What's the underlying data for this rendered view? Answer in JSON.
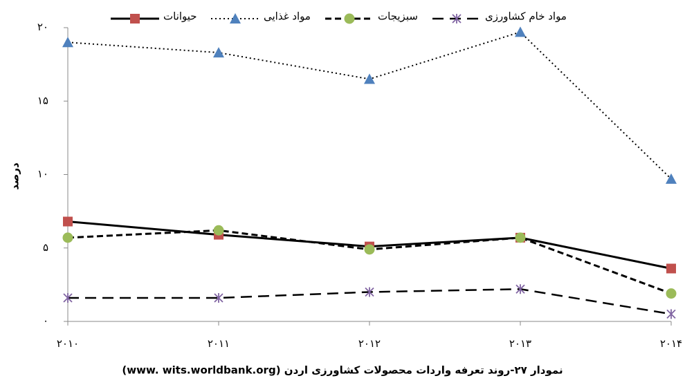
{
  "chart_data": {
    "type": "line",
    "ylabel": "درصد",
    "caption": "نمودار ۲۷-روند تعرفه واردات محصولات کشاورزی اردن (www. wits.worldbank.org)",
    "categories": [
      "۲۰۱۰",
      "۲۰۱۱",
      "۲۰۱۲",
      "۲۰۱۳",
      "۲۰۱۴"
    ],
    "ylim": [
      0,
      20
    ],
    "yticks": [
      {
        "value": 0,
        "label": "۰"
      },
      {
        "value": 5,
        "label": "۵"
      },
      {
        "value": 10,
        "label": "۱۰"
      },
      {
        "value": 15,
        "label": "۱۵"
      },
      {
        "value": 20,
        "label": "۲۰"
      }
    ],
    "grid": false,
    "legend": "top",
    "series": [
      {
        "name": "حیوانات",
        "color": "#c0504d",
        "marker": "square",
        "dash": "solid",
        "values": [
          6.8,
          5.9,
          5.1,
          5.7,
          3.6
        ]
      },
      {
        "name": "مواد غذایی",
        "color": "#4f81bd",
        "marker": "triangle",
        "dash": "dotted",
        "values": [
          19.0,
          18.3,
          16.5,
          19.7,
          9.7
        ]
      },
      {
        "name": "سبزیجات",
        "color": "#9bbb59",
        "marker": "circle",
        "dash": "dashed",
        "values": [
          5.7,
          6.2,
          4.9,
          5.7,
          1.9
        ]
      },
      {
        "name": "مواد خام کشاورزی",
        "color": "#8064a2",
        "marker": "star",
        "dash": "longdash",
        "values": [
          1.6,
          1.6,
          2.0,
          2.2,
          0.5
        ]
      }
    ]
  }
}
